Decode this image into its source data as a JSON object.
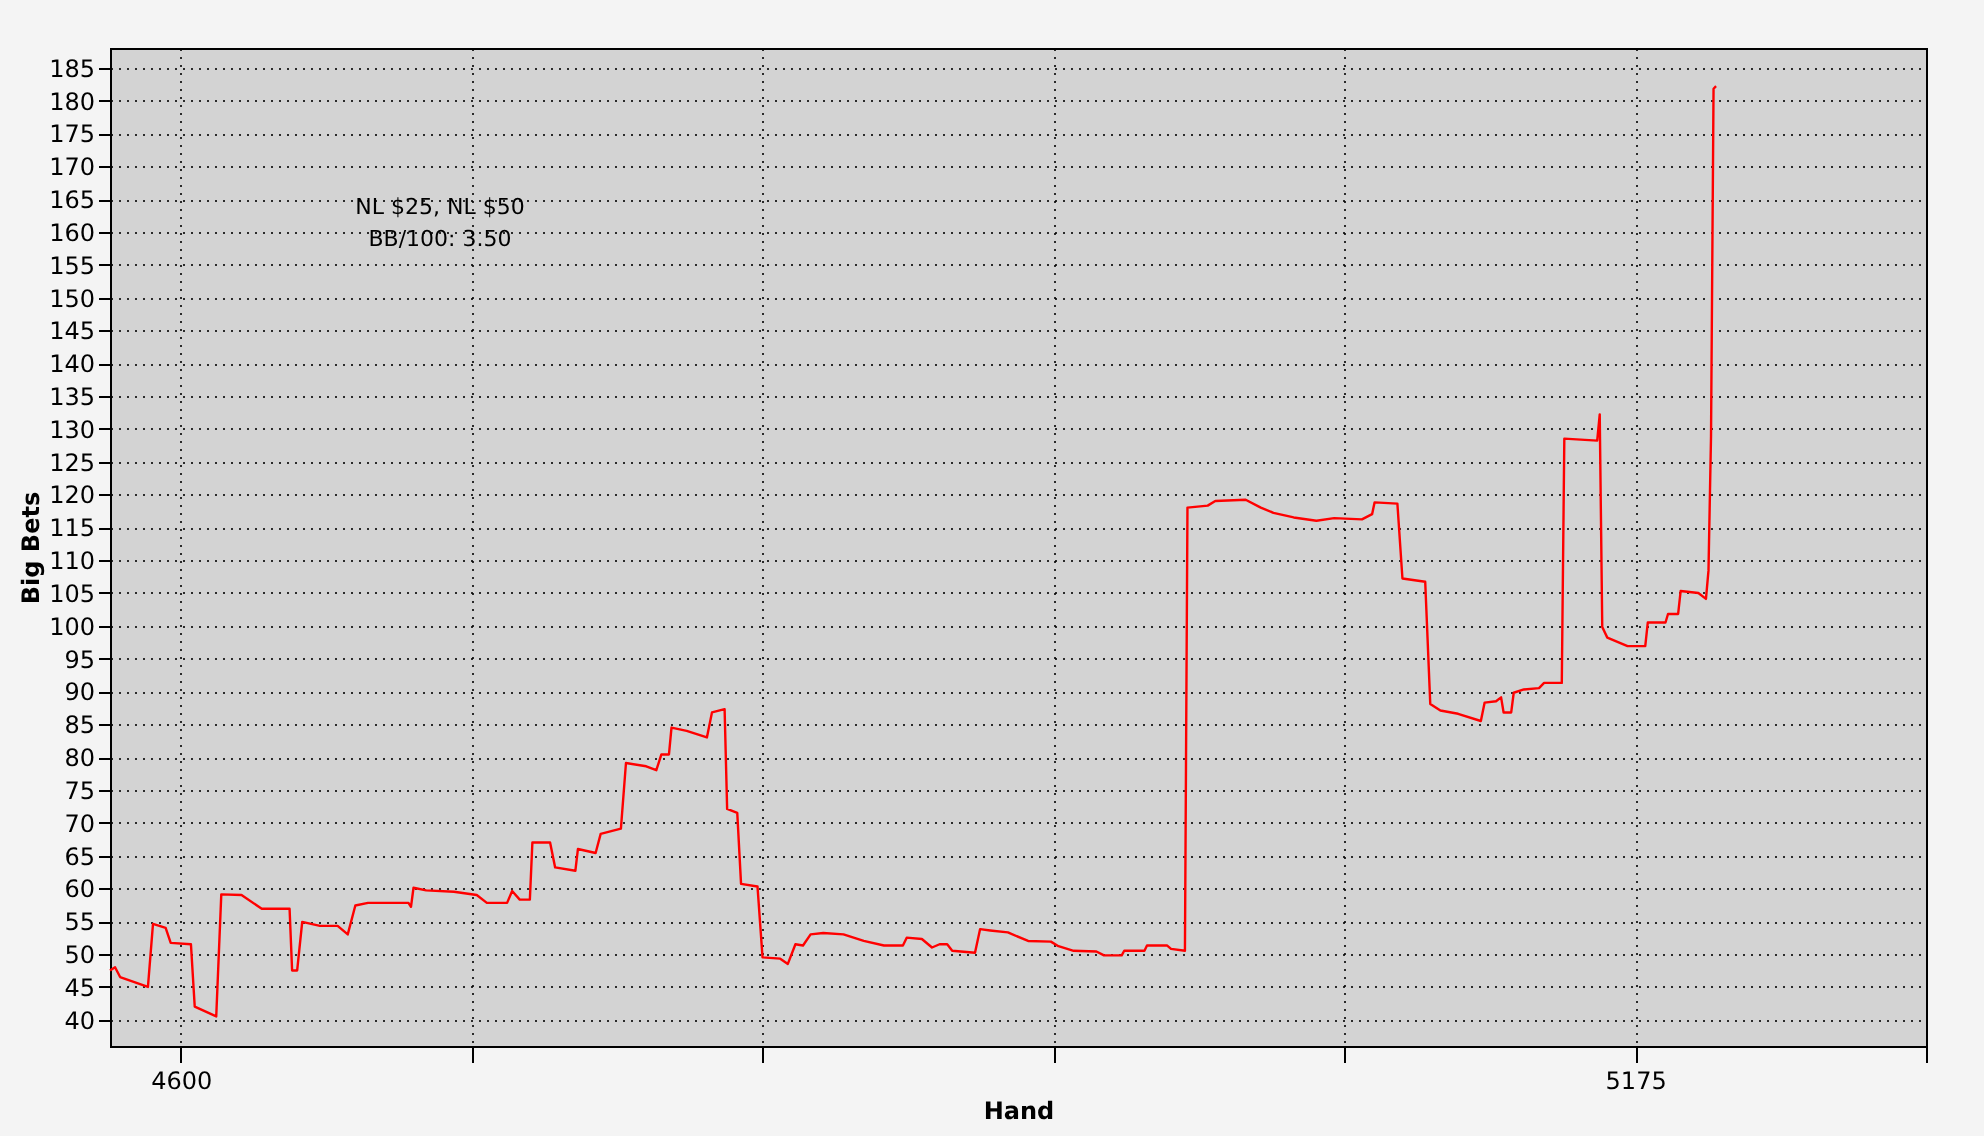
{
  "chart_data": {
    "type": "line",
    "xlabel": "Hand",
    "ylabel": "Big Bets",
    "annotations": [
      "NL $25, NL $50",
      "BB/100: 3.50"
    ],
    "x": [
      4572,
      4574,
      4576,
      4587,
      4589,
      4594,
      4596,
      4604,
      4605.5,
      4614,
      4616,
      4624,
      4632,
      4643,
      4644,
      4646,
      4648,
      4655,
      4662,
      4666,
      4669,
      4674,
      4690,
      4691,
      4692,
      4697,
      4708,
      4717,
      4721,
      4729,
      4731,
      4734,
      4738,
      4739,
      4746,
      4748,
      4756,
      4757,
      4764,
      4766,
      4774,
      4776,
      4784,
      4788,
      4790,
      4793,
      4794,
      4800,
      4808,
      4810,
      4815,
      4816,
      4820,
      4821.5,
      4828,
      4830,
      4837,
      4840,
      4843,
      4846,
      4849,
      4854,
      4862,
      4870,
      4878,
      4885.5,
      4887,
      4893,
      4897,
      4900,
      4903,
      4905,
      4914,
      4916,
      4920,
      4927,
      4935,
      4944,
      4947,
      4953,
      4962,
      4965,
      4972,
      4973,
      4981,
      4982,
      4990,
      4991.5,
      4997,
      4998,
      5006,
      5009,
      5021,
      5027,
      5032,
      5040,
      5049,
      5056,
      5067,
      5071,
      5072,
      5081,
      5083,
      5092,
      5094,
      5098,
      5105,
      5114,
      5115.5,
      5120,
      5122,
      5123,
      5126,
      5127,
      5131,
      5137,
      5139,
      5146,
      5147,
      5160,
      5161,
      5162,
      5164,
      5172,
      5179,
      5180,
      5187,
      5188,
      5192,
      5193,
      5200,
      5203,
      5204,
      5205,
      5206,
      5207
    ],
    "series": [
      {
        "color": "#ff0000",
        "values": [
          47.5,
          48,
          46.5,
          45,
          54.6,
          54,
          51.7,
          51.5,
          42,
          40.5,
          59.1,
          59,
          56.9,
          56.9,
          47.5,
          47.5,
          54.9,
          54.3,
          54.3,
          53,
          57.4,
          57.8,
          57.8,
          57.2,
          60.1,
          59.7,
          59.5,
          59,
          57.8,
          57.8,
          59.6,
          58.3,
          58.3,
          67,
          67,
          63.2,
          62.7,
          66,
          65.4,
          68.3,
          69.1,
          79.1,
          78.6,
          78,
          80.4,
          80.4,
          84.5,
          84,
          83,
          86.8,
          87.3,
          72.1,
          71.5,
          60.7,
          60.3,
          49.5,
          49.3,
          48.5,
          51.5,
          51.3,
          53,
          53.2,
          53,
          52,
          51.3,
          51.3,
          52.5,
          52.3,
          51,
          51.5,
          51.5,
          50.5,
          50.2,
          53.8,
          53.6,
          53.3,
          52,
          51.9,
          51.2,
          50.5,
          50.4,
          49.8,
          49.8,
          50.5,
          50.5,
          51.3,
          51.3,
          50.8,
          50.5,
          118,
          118.3,
          119,
          119.2,
          118,
          117.2,
          116.5,
          116,
          116.4,
          116.2,
          117,
          118.8,
          118.6,
          107.2,
          106.7,
          88.1,
          87.1,
          86.6,
          85.5,
          88.3,
          88.5,
          89.1,
          86.8,
          86.8,
          89.8,
          90.3,
          90.5,
          91.3,
          91.3,
          128.5,
          128.2,
          132.2,
          99.8,
          98.2,
          96.9,
          96.9,
          100.5,
          100.5,
          101.8,
          101.8,
          105.3,
          105,
          104.1,
          108.4,
          128.8,
          181.8,
          182.2
        ]
      }
    ],
    "xlim": [
      4572,
      5290
    ],
    "xticks": [
      4600,
      {
        "value": 4715,
        "label": null
      },
      {
        "value": 4830,
        "label": null
      },
      {
        "value": 4945,
        "label": null
      },
      {
        "value": 5060,
        "label": null
      },
      5175,
      {
        "value": 5290,
        "label": null
      }
    ],
    "ylim": [
      36,
      188
    ],
    "yticks": [
      40,
      45,
      50,
      55,
      60,
      65,
      70,
      75,
      80,
      85,
      90,
      95,
      100,
      105,
      110,
      115,
      120,
      125,
      130,
      135,
      140,
      145,
      150,
      155,
      160,
      165,
      170,
      175,
      180,
      185
    ],
    "grid": true
  }
}
